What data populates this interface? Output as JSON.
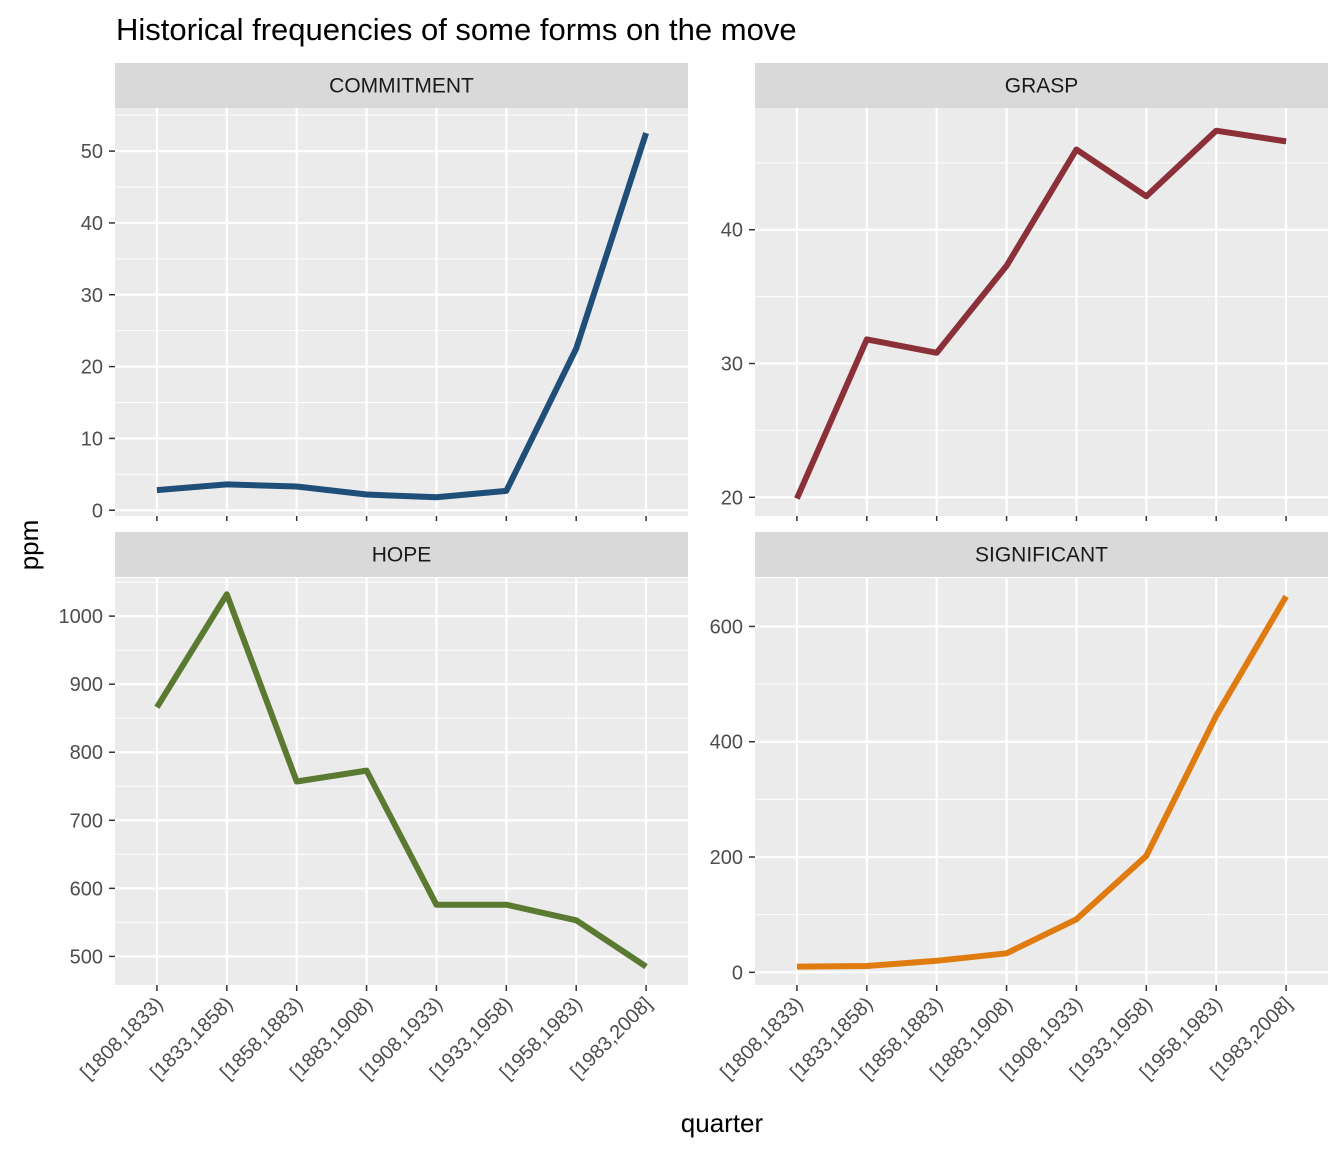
{
  "chart_data": {
    "type": "line",
    "title": "Historical frequencies of some forms on the move",
    "xlabel": "quarter",
    "ylabel": "ppm",
    "categories": [
      "[1808,1833)",
      "[1833,1858)",
      "[1858,1883)",
      "[1883,1908)",
      "[1908,1933)",
      "[1933,1958)",
      "[1958,1983)",
      "[1983,2008]"
    ],
    "grid": true,
    "legend": "none",
    "facets": [
      {
        "name": "COMMITMENT",
        "color": "#1f4e79",
        "ylim": [
          -0.8,
          56
        ],
        "yticks": [
          0,
          10,
          20,
          30,
          40,
          50
        ],
        "values": [
          2.8,
          3.6,
          3.3,
          2.2,
          1.8,
          2.7,
          22.5,
          52.5
        ]
      },
      {
        "name": "GRASP",
        "color": "#8b3039",
        "ylim": [
          18.6,
          49.1
        ],
        "yticks": [
          20,
          30,
          40
        ],
        "values": [
          19.9,
          31.8,
          30.8,
          37.3,
          46.0,
          42.5,
          47.4,
          46.6
        ]
      },
      {
        "name": "HOPE",
        "color": "#5a7a32",
        "ylim": [
          458,
          1056
        ],
        "yticks": [
          500,
          600,
          700,
          800,
          900,
          1000
        ],
        "values": [
          866,
          1032,
          757,
          773,
          576,
          576,
          553,
          485
        ]
      },
      {
        "name": "SIGNIFICANT",
        "color": "#e07b10",
        "ylim": [
          -22,
          684
        ],
        "yticks": [
          0,
          200,
          400,
          600
        ],
        "values": [
          10,
          11,
          20,
          33,
          92,
          202,
          445,
          652
        ]
      }
    ]
  }
}
